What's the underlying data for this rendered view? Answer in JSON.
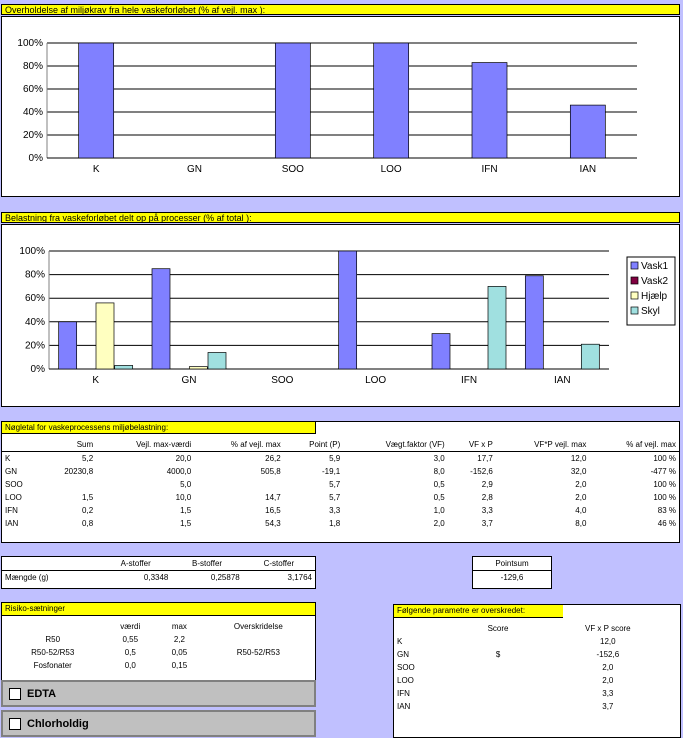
{
  "chart1": {
    "title": "Overholdelse af miljøkrav fra hele vaskeforløbet (% af vejl. max ):"
  },
  "chart2": {
    "title": "Belastning fra vaskeforløbet delt op på processer (% af total ):"
  },
  "chart_data": [
    {
      "type": "bar",
      "categories": [
        "K",
        "GN",
        "SOO",
        "LOO",
        "IFN",
        "IAN"
      ],
      "ylim": [
        0,
        100
      ],
      "yticks": [
        "0%",
        "20%",
        "40%",
        "60%",
        "80%",
        "100%"
      ],
      "series": [
        {
          "values": [
            100,
            0,
            100,
            100,
            83,
            46
          ],
          "color": "#8080ff"
        }
      ],
      "grid": true,
      "legend": "none"
    },
    {
      "type": "bar",
      "categories": [
        "K",
        "GN",
        "SOO",
        "LOO",
        "IFN",
        "IAN"
      ],
      "ylim": [
        0,
        100
      ],
      "yticks": [
        "0%",
        "20%",
        "40%",
        "60%",
        "80%",
        "100%"
      ],
      "series": [
        {
          "name": "Vask1",
          "values": [
            40,
            85,
            0,
            100,
            30,
            79
          ],
          "color": "#8080ff"
        },
        {
          "name": "Vask2",
          "values": [
            0,
            0,
            0,
            0,
            0,
            0
          ],
          "color": "#800040"
        },
        {
          "name": "Hjælp",
          "values": [
            56,
            2,
            0,
            0,
            0,
            0
          ],
          "color": "#ffffc0"
        },
        {
          "name": "Skyl",
          "values": [
            3,
            14,
            0,
            0,
            70,
            21
          ],
          "color": "#a0e0e0"
        }
      ],
      "grid": true,
      "legend": "right"
    }
  ],
  "keytable": {
    "title": "Nøgletal for vaskeprocessens miljøbelastning:",
    "headers": [
      "",
      "Sum",
      "Vejl. max-værdi",
      "% af vejl. max",
      "Point (P)",
      "Vægt.faktor (VF)",
      "VF x P",
      "VF*P vejl. max",
      "% af vejl. max"
    ],
    "rows": [
      [
        "K",
        "5,2",
        "20,0",
        "26,2",
        "5,9",
        "3,0",
        "17,7",
        "12,0",
        "100 %"
      ],
      [
        "GN",
        "20230,8",
        "4000,0",
        "505,8",
        "-19,1",
        "8,0",
        "-152,6",
        "32,0",
        "-477 %"
      ],
      [
        "SOO",
        "",
        "5,0",
        "",
        "5,7",
        "0,5",
        "2,9",
        "2,0",
        "100 %"
      ],
      [
        "LOO",
        "1,5",
        "10,0",
        "14,7",
        "5,7",
        "0,5",
        "2,8",
        "2,0",
        "100 %"
      ],
      [
        "IFN",
        "0,2",
        "1,5",
        "16,5",
        "3,3",
        "1,0",
        "3,3",
        "4,0",
        "83 %"
      ],
      [
        "IAN",
        "0,8",
        "1,5",
        "54,3",
        "1,8",
        "2,0",
        "3,7",
        "8,0",
        "46 %"
      ]
    ]
  },
  "stoffer": {
    "headers": [
      "",
      "A-stoffer",
      "B-stoffer",
      "C-stoffer"
    ],
    "label": "Mængde (g)",
    "values": [
      "0,3348",
      "0,25878",
      "3,1764"
    ]
  },
  "pointsum": {
    "label": "Pointsum",
    "value": "-129,6"
  },
  "risiko": {
    "title": "Risiko-sætninger",
    "headers": [
      "",
      "værdi",
      "max",
      "Overskridelse"
    ],
    "rows": [
      [
        "R50",
        "0,55",
        "2,2",
        ""
      ],
      [
        "R50-52/R53",
        "0,5",
        "0,05",
        "R50-52/R53"
      ],
      [
        "Fosfonater",
        "0,0",
        "0,15",
        ""
      ]
    ]
  },
  "edta_label": "EDTA",
  "chlor_label": "Chlorholdig",
  "params": {
    "title": "Følgende parametre er overskredet:",
    "headers": [
      "",
      "Score",
      "VF x P score"
    ],
    "rows": [
      [
        "K",
        "",
        "12,0"
      ],
      [
        "GN",
        "$",
        "-152,6"
      ],
      [
        "SOO",
        "",
        "2,0"
      ],
      [
        "LOO",
        "",
        "2,0"
      ],
      [
        "IFN",
        "",
        "3,3"
      ],
      [
        "IAN",
        "",
        "3,7"
      ]
    ]
  }
}
